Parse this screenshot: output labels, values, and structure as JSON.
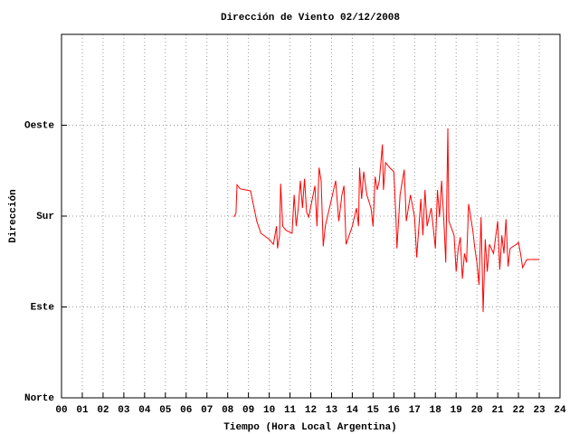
{
  "chart_data": {
    "type": "line",
    "title": "Dirección de Viento 02/12/2008",
    "x_label": "Tiempo (Hora Local Argentina)",
    "y_label": "Dirección",
    "color": "#ff0000",
    "grid": true,
    "xlim": [
      0,
      24
    ],
    "ylim": [
      0,
      360
    ],
    "xticks": [
      {
        "value": 0,
        "label": "00"
      },
      {
        "value": 1,
        "label": "01"
      },
      {
        "value": 2,
        "label": "02"
      },
      {
        "value": 3,
        "label": "03"
      },
      {
        "value": 4,
        "label": "04"
      },
      {
        "value": 5,
        "label": "05"
      },
      {
        "value": 6,
        "label": "06"
      },
      {
        "value": 7,
        "label": "07"
      },
      {
        "value": 8,
        "label": "08"
      },
      {
        "value": 9,
        "label": "09"
      },
      10,
      11,
      12,
      13,
      14,
      15,
      16,
      17,
      18,
      19,
      20,
      21,
      22,
      23,
      24
    ],
    "yticks": [
      {
        "value": 0,
        "label": "Norte"
      },
      {
        "value": 90,
        "label": "Este"
      },
      {
        "value": 180,
        "label": "Sur"
      },
      {
        "value": 270,
        "label": "Oeste"
      }
    ],
    "x": [
      8.3,
      8.4,
      8.45,
      8.6,
      9.1,
      9.4,
      9.6,
      10.0,
      10.2,
      10.35,
      10.4,
      10.5,
      10.55,
      10.65,
      10.8,
      11.1,
      11.2,
      11.3,
      11.4,
      11.5,
      11.6,
      11.7,
      11.8,
      11.9,
      12.2,
      12.3,
      12.4,
      12.5,
      12.6,
      12.7,
      12.9,
      13.2,
      13.35,
      13.5,
      13.6,
      13.7,
      14.0,
      14.2,
      14.3,
      14.35,
      14.45,
      14.55,
      14.7,
      14.9,
      15.0,
      15.1,
      15.2,
      15.3,
      15.45,
      15.5,
      15.6,
      15.8,
      16.0,
      16.1,
      16.15,
      16.3,
      16.5,
      16.6,
      16.8,
      17.0,
      17.1,
      17.3,
      17.4,
      17.5,
      17.6,
      17.8,
      18.0,
      18.1,
      18.2,
      18.3,
      18.4,
      18.5,
      18.6,
      18.65,
      18.9,
      19.0,
      19.1,
      19.2,
      19.3,
      19.4,
      19.5,
      19.6,
      19.8,
      19.9,
      20.0,
      20.1,
      20.2,
      20.3,
      20.4,
      20.5,
      20.6,
      20.8,
      21.0,
      21.1,
      21.2,
      21.3,
      21.4,
      21.5,
      21.6,
      21.9,
      22.0,
      22.1,
      22.2,
      22.4,
      23.0
    ],
    "values": [
      179,
      183,
      211,
      207,
      205,
      175,
      163,
      157,
      152,
      170,
      148,
      161,
      212,
      170,
      166,
      163,
      201,
      170,
      188,
      215,
      188,
      217,
      184,
      179,
      210,
      170,
      228,
      215,
      150,
      170,
      188,
      215,
      175,
      201,
      210,
      152,
      170,
      188,
      170,
      228,
      197,
      224,
      201,
      188,
      170,
      219,
      206,
      215,
      251,
      206,
      233,
      228,
      224,
      179,
      148,
      201,
      226,
      175,
      201,
      179,
      139,
      197,
      161,
      206,
      170,
      188,
      148,
      206,
      179,
      215,
      179,
      134,
      267,
      175,
      161,
      125,
      148,
      159,
      118,
      143,
      134,
      192,
      166,
      148,
      134,
      112,
      179,
      85,
      157,
      125,
      152,
      143,
      175,
      127,
      161,
      143,
      177,
      130,
      148,
      152,
      154,
      143,
      129,
      137,
      137
    ]
  }
}
